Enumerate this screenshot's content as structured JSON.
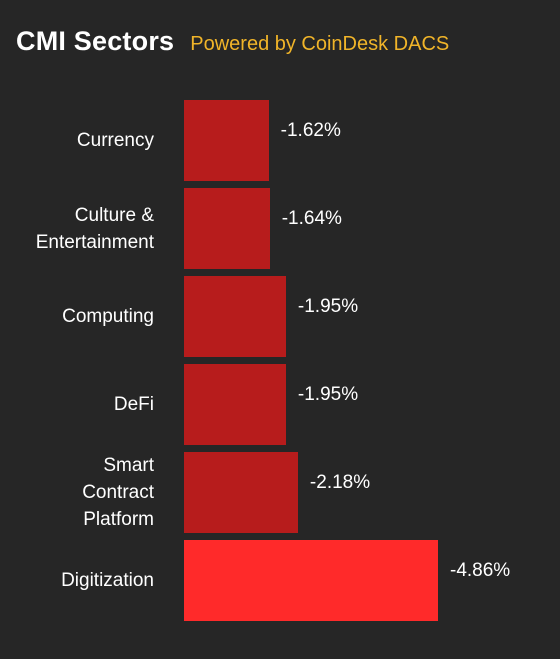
{
  "header": {
    "title": "CMI Sectors",
    "subtitle": "Powered by CoinDesk DACS"
  },
  "colors": {
    "background": "#262626",
    "bar": "#b71c1c",
    "bar_highlight": "#ff2a2a",
    "subtitle": "#f0b429"
  },
  "chart_data": {
    "type": "bar",
    "orientation": "horizontal",
    "title": "CMI Sectors",
    "subtitle": "Powered by CoinDesk DACS",
    "categories": [
      "Currency",
      "Culture & Entertainment",
      "Computing",
      "DeFi",
      "Smart Contract Platform",
      "Digitization"
    ],
    "label_lines": [
      [
        "Currency"
      ],
      [
        "Culture &",
        "Entertainment"
      ],
      [
        "Computing"
      ],
      [
        "DeFi"
      ],
      [
        "Smart",
        "Contract",
        "Platform"
      ],
      [
        "Digitization"
      ]
    ],
    "values": [
      -1.62,
      -1.64,
      -1.95,
      -1.95,
      -2.18,
      -4.86
    ],
    "value_labels": [
      "-1.62%",
      "-1.64%",
      "-1.95%",
      "-1.95%",
      "-2.18%",
      "-4.86%"
    ],
    "highlight_index": 5,
    "grid": false,
    "legend": "none"
  }
}
